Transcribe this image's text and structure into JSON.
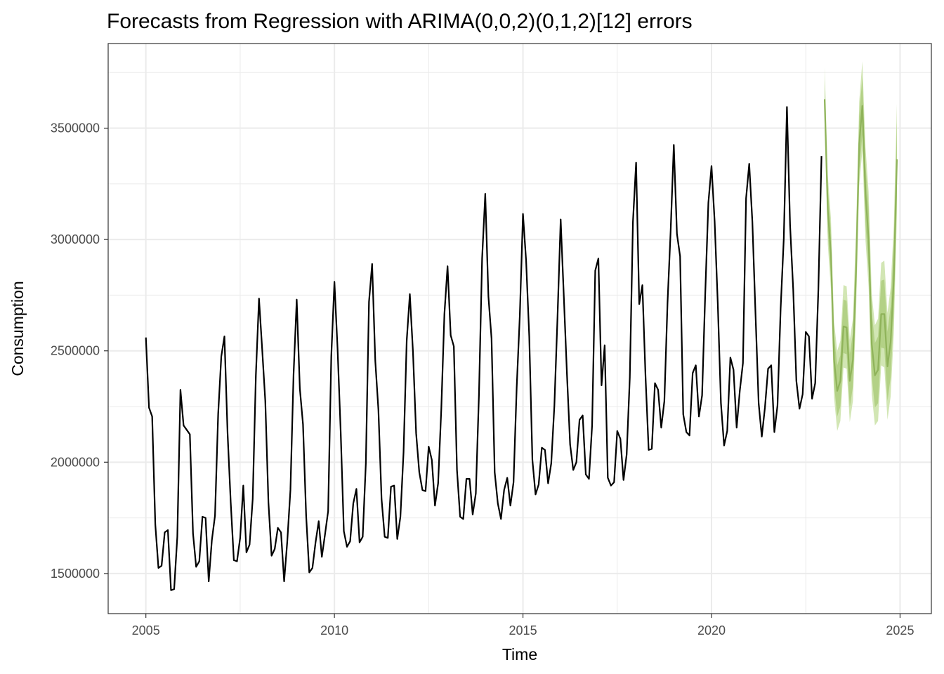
{
  "chart_data": {
    "type": "line",
    "title": "Forecasts from Regression with ARIMA(0,0,2)(0,1,2)[12] errors",
    "xlabel": "Time",
    "ylabel": "Consumption",
    "xlim": [
      2004,
      2025.83
    ],
    "ylim": [
      1320000,
      3880000
    ],
    "x_ticks": [
      2005,
      2010,
      2015,
      2020,
      2025
    ],
    "y_ticks": [
      1500000,
      2000000,
      2500000,
      3000000,
      3500000
    ],
    "x_tick_labels": [
      "2005",
      "2010",
      "2015",
      "2020",
      "2025"
    ],
    "y_tick_labels": [
      "1500000",
      "2000000",
      "2500000",
      "3000000",
      "3500000"
    ],
    "grid": true,
    "legend": "none",
    "colors": {
      "history": "#000000",
      "forecast": "#8fb35a",
      "interval_80": "#b3d186",
      "interval_95": "#d2e6b4",
      "grid": "#ebebeb",
      "border": "#333333"
    },
    "history": {
      "start": 2005.0,
      "frequency": 12,
      "values": [
        2560000,
        2245000,
        2205000,
        1720000,
        1525000,
        1535000,
        1685000,
        1695000,
        1425000,
        1430000,
        1665000,
        2325000,
        2165000,
        2145000,
        2125000,
        1680000,
        1530000,
        1555000,
        1755000,
        1750000,
        1465000,
        1650000,
        1760000,
        2215000,
        2475000,
        2565000,
        2130000,
        1820000,
        1560000,
        1555000,
        1660000,
        1895000,
        1595000,
        1630000,
        1835000,
        2390000,
        2735000,
        2510000,
        2275000,
        1820000,
        1580000,
        1610000,
        1705000,
        1685000,
        1465000,
        1645000,
        1875000,
        2395000,
        2730000,
        2330000,
        2170000,
        1760000,
        1505000,
        1525000,
        1640000,
        1735000,
        1575000,
        1675000,
        1780000,
        2475000,
        2810000,
        2510000,
        2135000,
        1690000,
        1620000,
        1645000,
        1815000,
        1880000,
        1640000,
        1665000,
        1995000,
        2720000,
        2890000,
        2455000,
        2235000,
        1835000,
        1665000,
        1660000,
        1890000,
        1895000,
        1655000,
        1755000,
        2045000,
        2545000,
        2755000,
        2495000,
        2130000,
        1955000,
        1875000,
        1870000,
        2070000,
        2010000,
        1805000,
        1905000,
        2235000,
        2665000,
        2880000,
        2570000,
        2520000,
        1965000,
        1755000,
        1745000,
        1925000,
        1925000,
        1765000,
        1860000,
        2305000,
        2915000,
        3205000,
        2745000,
        2555000,
        1955000,
        1815000,
        1745000,
        1875000,
        1930000,
        1805000,
        1910000,
        2335000,
        2660000,
        3115000,
        2905000,
        2565000,
        2010000,
        1855000,
        1900000,
        2065000,
        2055000,
        1905000,
        1995000,
        2255000,
        2655000,
        3090000,
        2745000,
        2395000,
        2080000,
        1965000,
        2000000,
        2190000,
        2210000,
        1945000,
        1925000,
        2165000,
        2860000,
        2915000,
        2345000,
        2525000,
        1930000,
        1895000,
        1910000,
        2140000,
        2105000,
        1920000,
        2035000,
        2380000,
        3080000,
        3345000,
        2710000,
        2795000,
        2385000,
        2055000,
        2060000,
        2355000,
        2325000,
        2155000,
        2275000,
        2715000,
        3040000,
        3425000,
        3025000,
        2925000,
        2215000,
        2135000,
        2120000,
        2400000,
        2435000,
        2205000,
        2300000,
        2755000,
        3165000,
        3330000,
        3080000,
        2710000,
        2265000,
        2075000,
        2140000,
        2470000,
        2415000,
        2155000,
        2320000,
        2445000,
        3185000,
        3340000,
        3080000,
        2665000,
        2265000,
        2115000,
        2245000,
        2420000,
        2435000,
        2135000,
        2255000,
        2690000,
        3005000,
        3595000,
        3065000,
        2775000,
        2365000,
        2240000,
        2305000,
        2585000,
        2565000,
        2285000,
        2355000,
        2775000,
        3375000
      ]
    },
    "forecast": {
      "start": 2023.0,
      "frequency": 12,
      "values": [
        3630000,
        3135000,
        2935000,
        2460000,
        2320000,
        2365000,
        2610000,
        2605000,
        2365000,
        2460000,
        2860000,
        3430000,
        3600000,
        3205000,
        3000000,
        2530000,
        2390000,
        2415000,
        2665000,
        2665000,
        2430000,
        2540000,
        2820000,
        3360000
      ],
      "lo80": [
        3540000,
        3035000,
        2830000,
        2350000,
        2205000,
        2250000,
        2490000,
        2485000,
        2245000,
        2340000,
        2735000,
        3305000,
        3470000,
        3070000,
        2860000,
        2385000,
        2245000,
        2265000,
        2515000,
        2510000,
        2275000,
        2380000,
        2660000,
        3195000
      ],
      "hi80": [
        3720000,
        3235000,
        3040000,
        2570000,
        2435000,
        2480000,
        2730000,
        2725000,
        2485000,
        2580000,
        2985000,
        3555000,
        3730000,
        3340000,
        3140000,
        2675000,
        2535000,
        2565000,
        2815000,
        2820000,
        2585000,
        2700000,
        2980000,
        3525000
      ],
      "lo95": [
        3490000,
        2980000,
        2775000,
        2290000,
        2140000,
        2185000,
        2425000,
        2420000,
        2180000,
        2275000,
        2670000,
        3240000,
        3400000,
        2995000,
        2785000,
        2305000,
        2165000,
        2185000,
        2435000,
        2425000,
        2190000,
        2295000,
        2575000,
        3110000
      ],
      "hi95": [
        3775000,
        3290000,
        3095000,
        2630000,
        2500000,
        2545000,
        2795000,
        2790000,
        2550000,
        2645000,
        3050000,
        3620000,
        3800000,
        3415000,
        3215000,
        2755000,
        2615000,
        2645000,
        2895000,
        2905000,
        2670000,
        2785000,
        3065000,
        3610000
      ]
    }
  }
}
